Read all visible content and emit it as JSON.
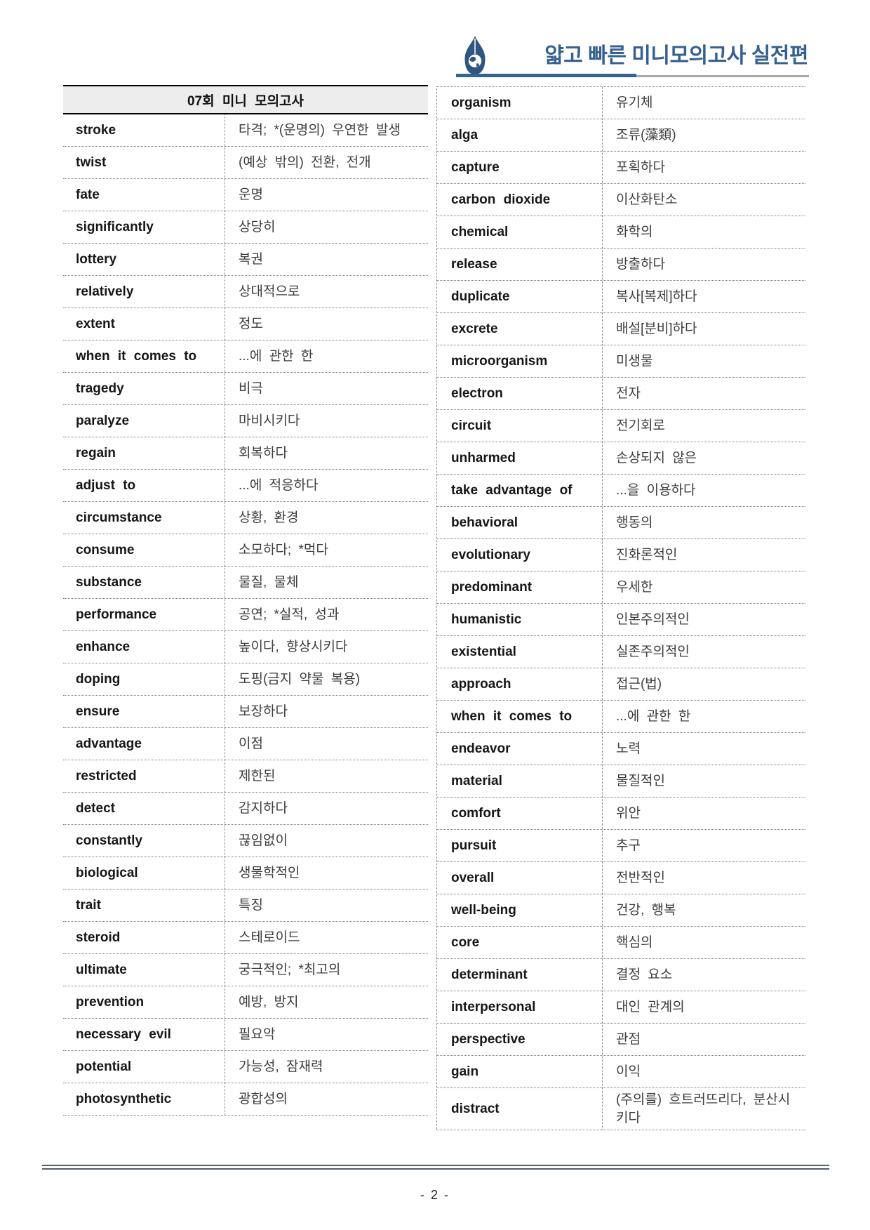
{
  "header": {
    "logo_icon": "pen-nib-globe-icon",
    "brand_title": "얇고 빠른 미니모의고사 실전편",
    "accent_color": "#35608f",
    "rule_gray_color": "#a8a8a8"
  },
  "left_table": {
    "title": "07회 미니 모의고사",
    "rows": [
      {
        "en": "stroke",
        "ko": "타격; *(운명의) 우연한 발생"
      },
      {
        "en": "twist",
        "ko": "(예상 밖의) 전환, 전개"
      },
      {
        "en": "fate",
        "ko": "운명"
      },
      {
        "en": "significantly",
        "ko": "상당히"
      },
      {
        "en": "lottery",
        "ko": "복권"
      },
      {
        "en": "relatively",
        "ko": "상대적으로"
      },
      {
        "en": "extent",
        "ko": "정도"
      },
      {
        "en": "when it comes to",
        "ko": "...에 관한 한"
      },
      {
        "en": "tragedy",
        "ko": "비극"
      },
      {
        "en": "paralyze",
        "ko": "마비시키다"
      },
      {
        "en": "regain",
        "ko": "회복하다"
      },
      {
        "en": "adjust to",
        "ko": "...에 적응하다"
      },
      {
        "en": "circumstance",
        "ko": "상황, 환경"
      },
      {
        "en": "consume",
        "ko": "소모하다; *먹다"
      },
      {
        "en": "substance",
        "ko": "물질, 물체"
      },
      {
        "en": "performance",
        "ko": "공연; *실적, 성과"
      },
      {
        "en": "enhance",
        "ko": "높이다, 향상시키다"
      },
      {
        "en": "doping",
        "ko": "도핑(금지 약물 복용)"
      },
      {
        "en": "ensure",
        "ko": "보장하다"
      },
      {
        "en": "advantage",
        "ko": "이점"
      },
      {
        "en": "restricted",
        "ko": "제한된"
      },
      {
        "en": "detect",
        "ko": "감지하다"
      },
      {
        "en": "constantly",
        "ko": "끊임없이"
      },
      {
        "en": "biological",
        "ko": "생물학적인"
      },
      {
        "en": "trait",
        "ko": "특징"
      },
      {
        "en": "steroid",
        "ko": "스테로이드"
      },
      {
        "en": "ultimate",
        "ko": "궁극적인; *최고의"
      },
      {
        "en": "prevention",
        "ko": "예방, 방지"
      },
      {
        "en": "necessary evil",
        "ko": "필요악"
      },
      {
        "en": "potential",
        "ko": "가능성, 잠재력"
      },
      {
        "en": "photosynthetic",
        "ko": "광합성의"
      }
    ]
  },
  "right_table": {
    "rows": [
      {
        "en": "organism",
        "ko": "유기체"
      },
      {
        "en": "alga",
        "ko": "조류(藻類)"
      },
      {
        "en": "capture",
        "ko": "포획하다"
      },
      {
        "en": "carbon dioxide",
        "ko": "이산화탄소"
      },
      {
        "en": "chemical",
        "ko": "화학의"
      },
      {
        "en": "release",
        "ko": "방출하다"
      },
      {
        "en": "duplicate",
        "ko": "복사[복제]하다"
      },
      {
        "en": "excrete",
        "ko": "배설[분비]하다"
      },
      {
        "en": "microorganism",
        "ko": "미생물"
      },
      {
        "en": "electron",
        "ko": "전자"
      },
      {
        "en": "circuit",
        "ko": "전기회로"
      },
      {
        "en": "unharmed",
        "ko": "손상되지 않은"
      },
      {
        "en": "take advantage of",
        "ko": "...을 이용하다"
      },
      {
        "en": "behavioral",
        "ko": "행동의"
      },
      {
        "en": "evolutionary",
        "ko": "진화론적인"
      },
      {
        "en": "predominant",
        "ko": "우세한"
      },
      {
        "en": "humanistic",
        "ko": "인본주의적인"
      },
      {
        "en": "existential",
        "ko": "실존주의적인"
      },
      {
        "en": "approach",
        "ko": "접근(법)"
      },
      {
        "en": "when it comes to",
        "ko": "...에 관한 한"
      },
      {
        "en": "endeavor",
        "ko": "노력"
      },
      {
        "en": "material",
        "ko": "물질적인"
      },
      {
        "en": "comfort",
        "ko": "위안"
      },
      {
        "en": "pursuit",
        "ko": "추구"
      },
      {
        "en": "overall",
        "ko": "전반적인"
      },
      {
        "en": "well-being",
        "ko": "건강, 행복"
      },
      {
        "en": "core",
        "ko": "핵심의"
      },
      {
        "en": "determinant",
        "ko": "결정 요소"
      },
      {
        "en": "interpersonal",
        "ko": "대인 관계의"
      },
      {
        "en": "perspective",
        "ko": "관점"
      },
      {
        "en": "gain",
        "ko": "이익"
      },
      {
        "en": "distract",
        "ko": "(주의를) 흐트러뜨리다, 분산시키다"
      }
    ]
  },
  "footer": {
    "page_label": "- 2 -"
  },
  "colors": {
    "header_fill": "#ededed",
    "dotted_border": "#7a7a7a",
    "english_text": "#161616",
    "korean_text": "#3d3d3d",
    "footer_rule": "#4f606e"
  }
}
